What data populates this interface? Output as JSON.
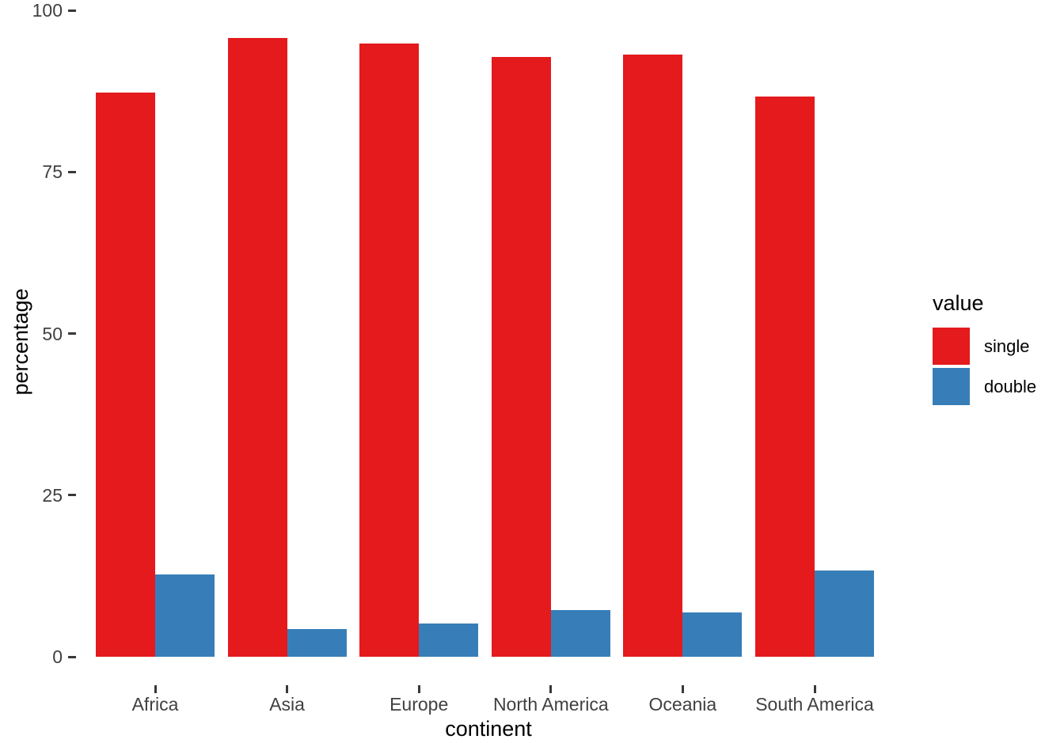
{
  "chart_data": {
    "type": "bar",
    "bar_grouping": "dodge",
    "title": "",
    "xlabel": "continent",
    "ylabel": "percentage",
    "categories": [
      "Africa",
      "Asia",
      "Europe",
      "North America",
      "Oceania",
      "South America"
    ],
    "series": [
      {
        "name": "single",
        "color": "#E41A1C",
        "values": [
          87.3,
          95.7,
          94.9,
          92.8,
          93.1,
          86.7
        ]
      },
      {
        "name": "double",
        "color": "#377EB8",
        "values": [
          12.7,
          4.3,
          5.1,
          7.2,
          6.9,
          13.3
        ]
      }
    ],
    "y_axis": {
      "ticks": [
        0,
        25,
        50,
        75,
        100
      ],
      "lim": [
        0,
        100
      ]
    },
    "legend": {
      "title": "value",
      "position": "right",
      "entries": [
        "single",
        "double"
      ]
    },
    "grid": false,
    "panel_background": "#FFFFFF"
  },
  "colors": {
    "background": "#FFFFFF",
    "tick_text": "#404040",
    "tick_mark": "#383838",
    "title_text": "#000000"
  }
}
